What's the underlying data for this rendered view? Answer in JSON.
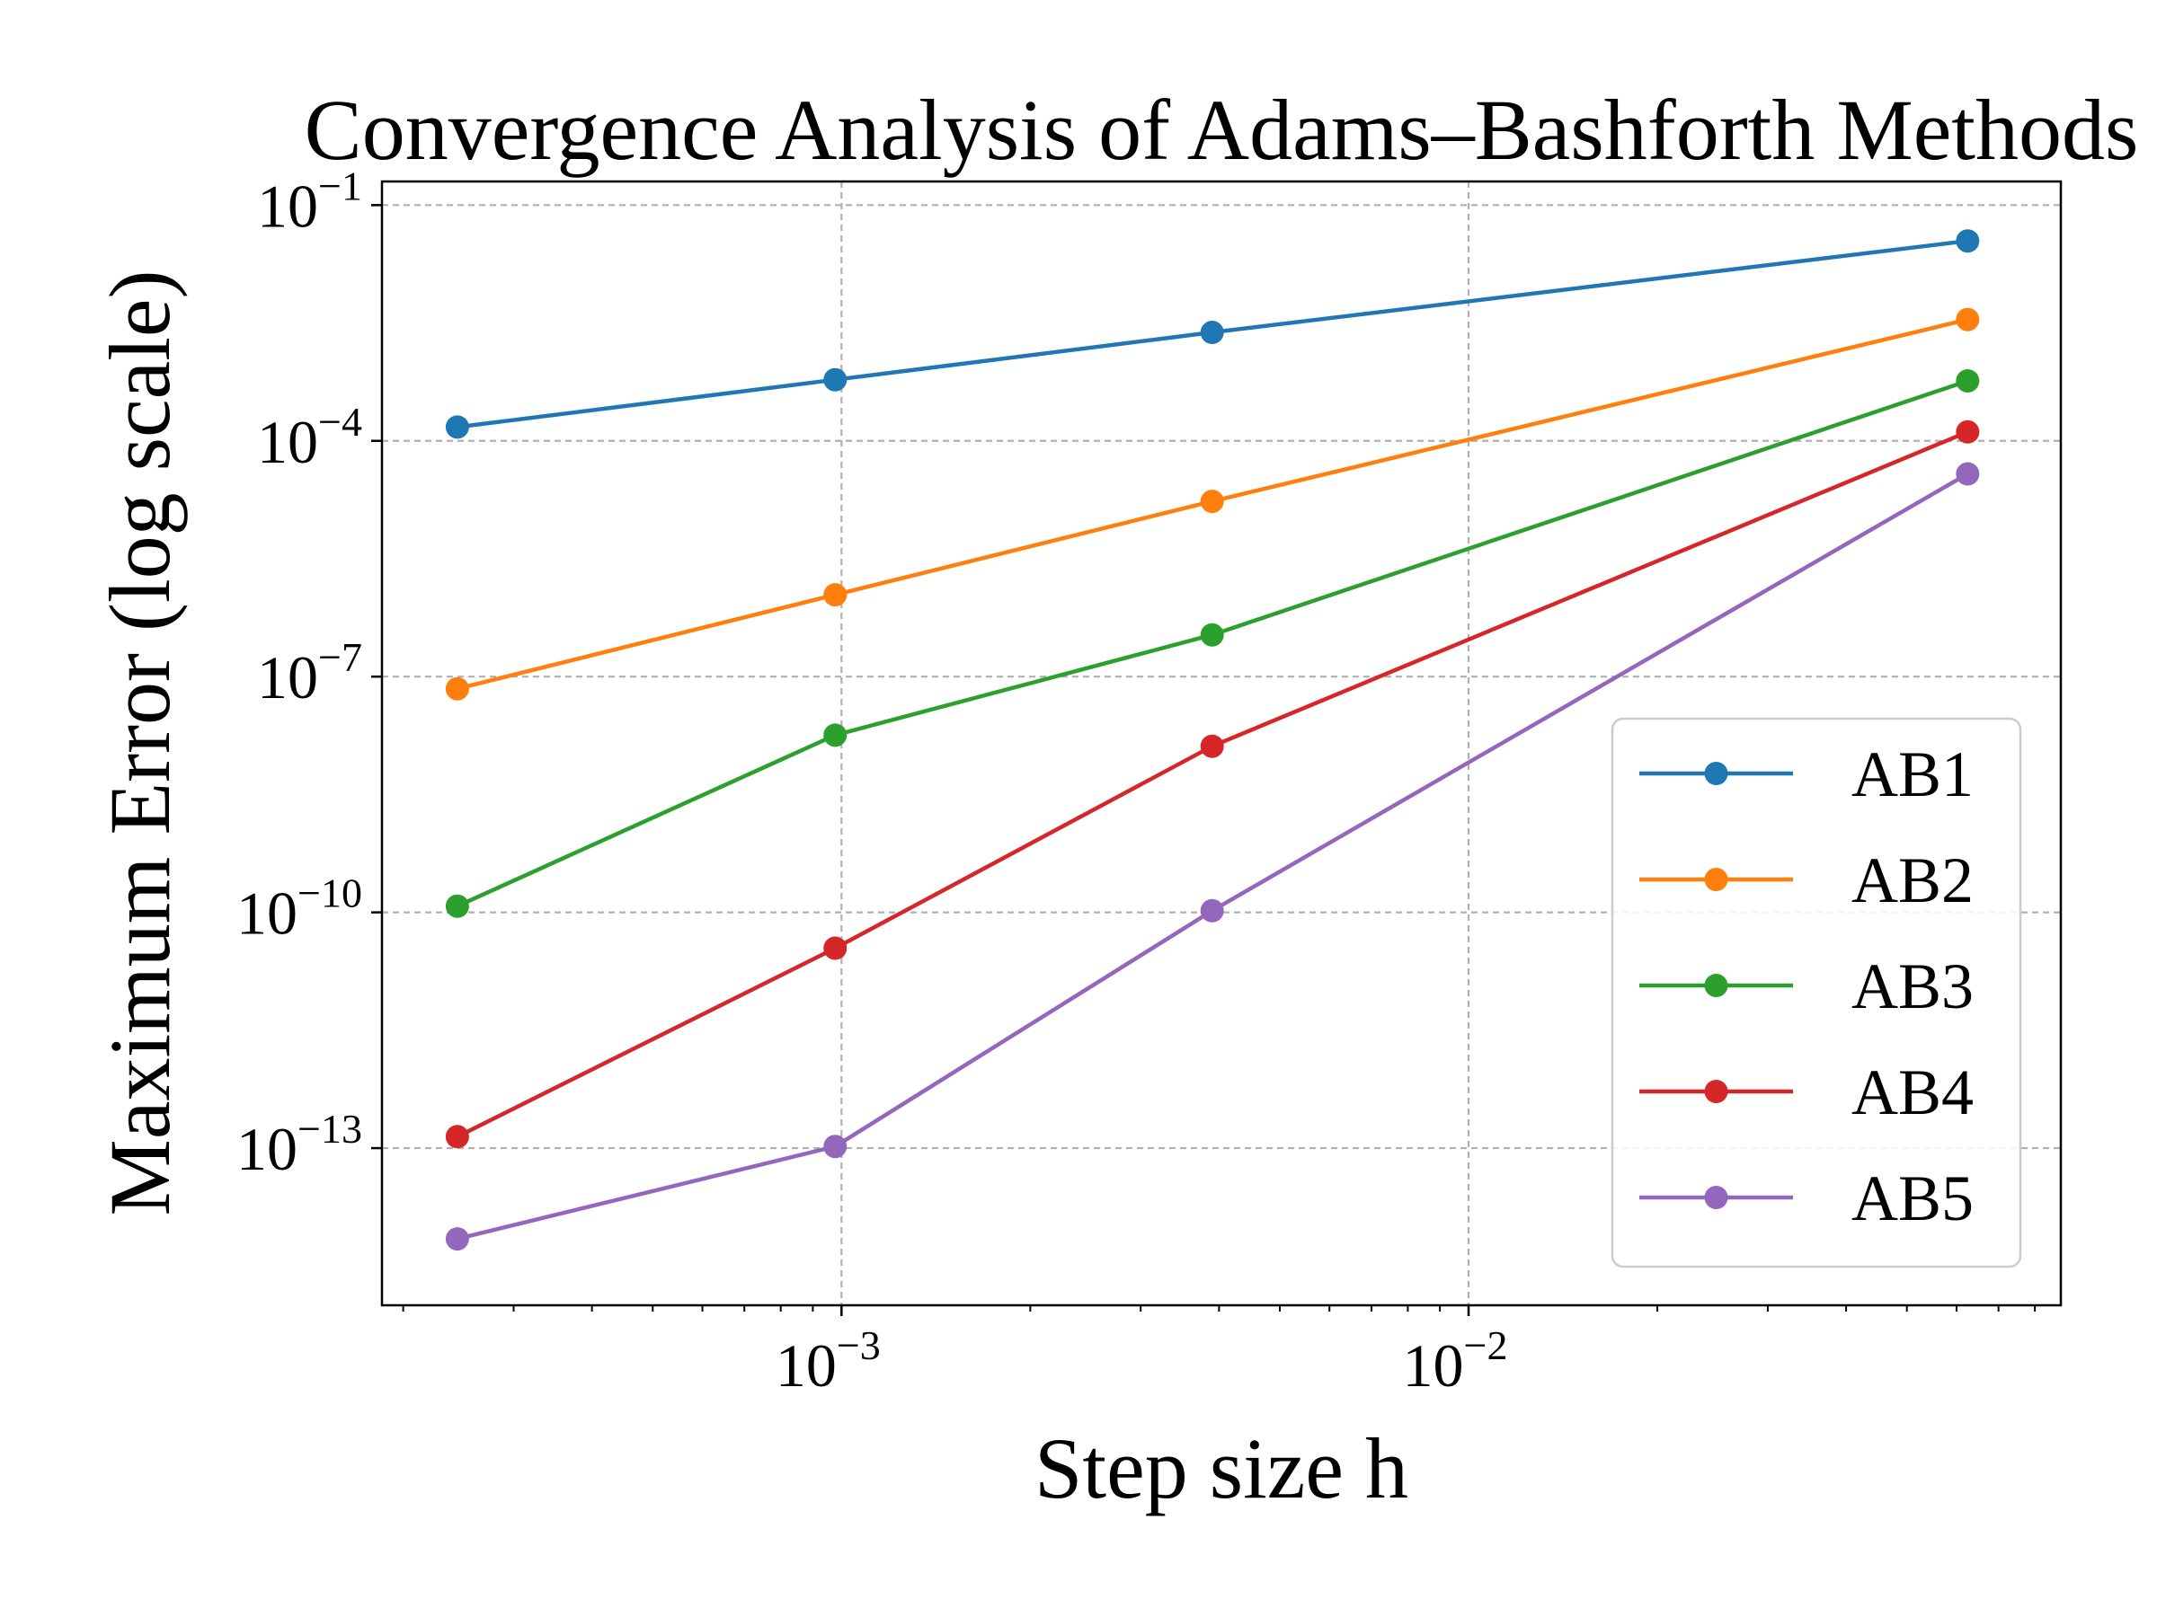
{
  "chart_data": {
    "type": "line",
    "title": "Convergence Analysis of Adams–Bashforth Methods",
    "xlabel": "Step size h",
    "ylabel": "Maximum Error (log scale)",
    "xscale": "log",
    "yscale": "log",
    "xlim": [
      0.000185,
      0.088
    ],
    "ylim": [
      1e-15,
      0.2
    ],
    "grid": true,
    "legend_position": "center-right",
    "x": [
      0.000244,
      0.000977,
      0.0039,
      0.0625
    ],
    "x_ticks": [
      {
        "value": 0.001,
        "base": "10",
        "exp": "−3"
      },
      {
        "value": 0.01,
        "base": "10",
        "exp": "−2"
      }
    ],
    "y_ticks": [
      {
        "value": 0.1,
        "base": "10",
        "exp": "−1"
      },
      {
        "value": 0.0001,
        "base": "10",
        "exp": "−4"
      },
      {
        "value": 1e-07,
        "base": "10",
        "exp": "−7"
      },
      {
        "value": 1e-10,
        "base": "10",
        "exp": "−10"
      },
      {
        "value": 1e-13,
        "base": "10",
        "exp": "−13"
      }
    ],
    "series": [
      {
        "name": "AB1",
        "color": "#1f77b4",
        "values": [
          0.00015,
          0.0006,
          0.0024,
          0.035
        ]
      },
      {
        "name": "AB2",
        "color": "#ff7f0e",
        "values": [
          7e-08,
          1.1e-06,
          1.7e-05,
          0.0035
        ]
      },
      {
        "name": "AB3",
        "color": "#2ca02c",
        "values": [
          1.2e-10,
          1.8e-08,
          3.4e-07,
          0.00058
        ]
      },
      {
        "name": "AB4",
        "color": "#d62728",
        "values": [
          1.4e-13,
          3.5e-11,
          1.3e-08,
          0.00013
        ]
      },
      {
        "name": "AB5",
        "color": "#9467bd",
        "values": [
          7e-15,
          1.05e-13,
          1.05e-10,
          3.8e-05
        ]
      }
    ]
  }
}
